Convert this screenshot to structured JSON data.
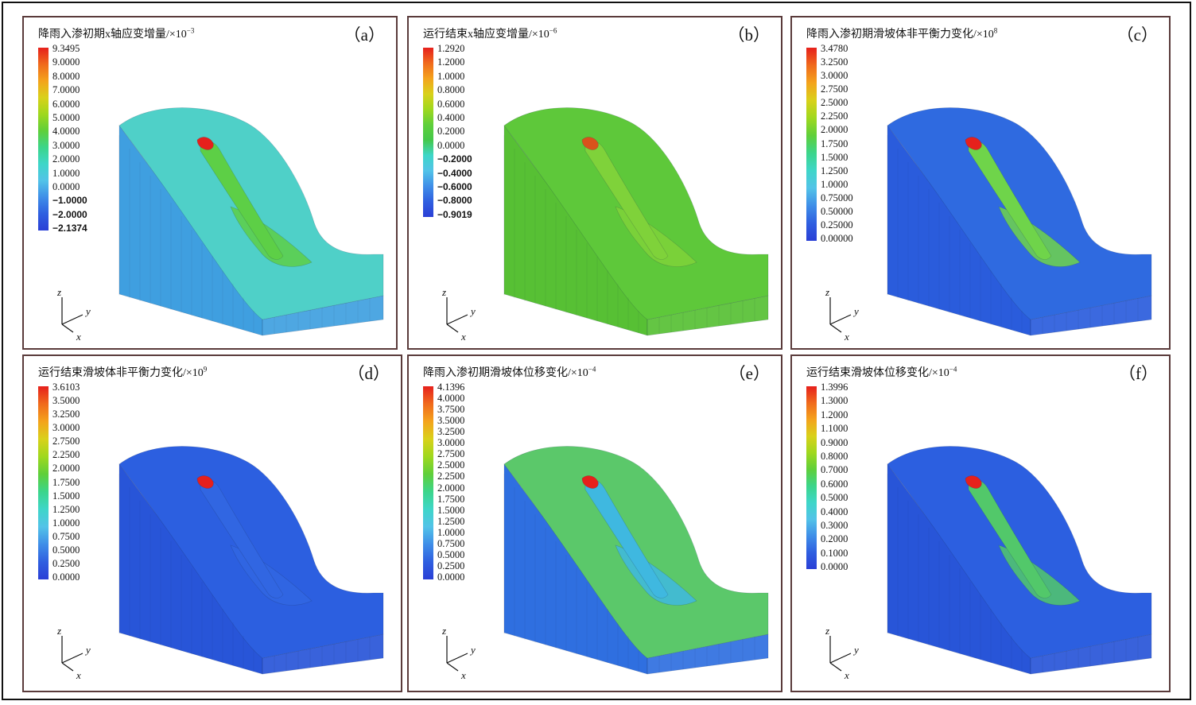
{
  "figure": {
    "panels": [
      {
        "label": "（a）",
        "title": "降雨入渗初期x轴应变增量/×10",
        "title_exp": "−3",
        "colors": [
          "#e6201c",
          "#f06a1c",
          "#f4a31c",
          "#d9d11a",
          "#9fd81e",
          "#5fcf3a",
          "#3cd58a",
          "#3ed6c8",
          "#52c3e8",
          "#3f8ee8",
          "#2f5fe0",
          "#2a3fd6"
        ],
        "ticks": [
          "9.3495",
          "9.0000",
          "8.0000",
          "7.0000",
          "6.0000",
          "5.0000",
          "4.0000",
          "3.0000",
          "2.0000",
          "1.0000",
          "0.0000",
          "−1.0000",
          "−2.0000",
          "−2.1374"
        ],
        "bold_from": 11,
        "base": "#4fd0c8",
        "side": "#3f9fe0",
        "band": "#5dcf46",
        "hot": "#e6201c",
        "axes": {
          "z": "z",
          "y": "y",
          "x": "x"
        }
      },
      {
        "label": "（b）",
        "title": "运行结束x轴应变增量/×10",
        "title_exp": "−6",
        "colors": [
          "#e6201c",
          "#f06a1c",
          "#f4a31c",
          "#d9d11a",
          "#9fd81e",
          "#5fcf3a",
          "#44c84a",
          "#3ed6c8",
          "#52c3e8",
          "#3f8ee8",
          "#2f5fe0",
          "#2a3fd6"
        ],
        "ticks": [
          "1.2920",
          "1.2000",
          "1.0000",
          "0.8000",
          "0.6000",
          "0.4000",
          "0.2000",
          "0.0000",
          "−0.2000",
          "−0.4000",
          "−0.6000",
          "−0.8000",
          "−0.9019"
        ],
        "bold_from": 8,
        "base": "#5ec83a",
        "side": "#57c034",
        "band": "#7fd23a",
        "hot": "#d9521c",
        "axes": {
          "z": "z",
          "y": "y",
          "x": "x"
        }
      },
      {
        "label": "（c）",
        "title": "降雨入渗初期滑坡体非平衡力变化/×10",
        "title_exp": "8",
        "colors": [
          "#e6201c",
          "#f06a1c",
          "#f4a31c",
          "#d9d11a",
          "#9fd81e",
          "#5fcf3a",
          "#3cd58a",
          "#3ed6c8",
          "#52c3e8",
          "#3f8ee8",
          "#2f5fe0",
          "#2a3fd6"
        ],
        "ticks": [
          "3.4780",
          "3.2500",
          "3.0000",
          "2.7500",
          "2.5000",
          "2.2500",
          "2.0000",
          "1.7500",
          "1.5000",
          "1.2500",
          "1.0000",
          "0.75000",
          "0.50000",
          "0.25000",
          "0.00000"
        ],
        "bold_from": 99,
        "base": "#2f6ae0",
        "side": "#2a5cdc",
        "band": "#6fd44a",
        "hot": "#e6201c",
        "axes": {
          "z": "z",
          "y": "y",
          "x": "x"
        }
      },
      {
        "label": "（d）",
        "title": "运行结束滑坡体非平衡力变化/×10",
        "title_exp": "9",
        "colors": [
          "#e6201c",
          "#f06a1c",
          "#f4a31c",
          "#d9d11a",
          "#9fd81e",
          "#5fcf3a",
          "#3cd58a",
          "#3ed6c8",
          "#52c3e8",
          "#3f8ee8",
          "#2f5fe0",
          "#2a3fd6"
        ],
        "ticks": [
          "3.6103",
          "3.5000",
          "3.2500",
          "3.0000",
          "2.7500",
          "2.2500",
          "2.0000",
          "1.7500",
          "1.5000",
          "1.2500",
          "1.0000",
          "0.7500",
          "0.5000",
          "0.2500",
          "0.0000"
        ],
        "bold_from": 99,
        "base": "#2c5fe0",
        "side": "#2855d8",
        "band": "#3166e2",
        "hot": "#e6201c",
        "axes": {
          "z": "z",
          "y": "y",
          "x": "x"
        }
      },
      {
        "label": "（e）",
        "title": "降雨入渗初期滑坡体位移变化/×10",
        "title_exp": "−4",
        "colors": [
          "#e6201c",
          "#f06a1c",
          "#f4a31c",
          "#d9d11a",
          "#9fd81e",
          "#5fcf3a",
          "#3cd58a",
          "#3ed6c8",
          "#52c3e8",
          "#3f8ee8",
          "#2f5fe0",
          "#2a3fd6"
        ],
        "ticks": [
          "4.1396",
          "4.0000",
          "3.7500",
          "3.5000",
          "3.2500",
          "3.0000",
          "2.7500",
          "2.5000",
          "2.2500",
          "2.0000",
          "1.7500",
          "1.5000",
          "1.2500",
          "1.0000",
          "0.7500",
          "0.5000",
          "0.2500",
          "0.0000"
        ],
        "bold_from": 99,
        "base": "#5bc86a",
        "side": "#2f6fe0",
        "band": "#3fb8e0",
        "hot": "#e6201c",
        "axes": {
          "z": "z",
          "y": "y",
          "x": "x"
        }
      },
      {
        "label": "（f）",
        "title": "运行结束滑坡体位移变化/×10",
        "title_exp": "−4",
        "colors": [
          "#e6201c",
          "#f06a1c",
          "#f4a31c",
          "#d9d11a",
          "#9fd81e",
          "#5fcf3a",
          "#3cd58a",
          "#3ed6c8",
          "#52c3e8",
          "#3f8ee8",
          "#2f5fe0",
          "#2a3fd6"
        ],
        "ticks": [
          "1.3996",
          "1.3000",
          "1.2000",
          "1.1000",
          "0.9000",
          "0.8000",
          "0.7000",
          "0.6000",
          "0.5000",
          "0.4000",
          "0.3000",
          "0.2000",
          "0.1000",
          "0.0000"
        ],
        "bold_from": 99,
        "base": "#2c5fe0",
        "side": "#2855d8",
        "band": "#52c86a",
        "hot": "#e6201c",
        "axes": {
          "z": "z",
          "y": "y",
          "x": "x"
        }
      }
    ]
  }
}
